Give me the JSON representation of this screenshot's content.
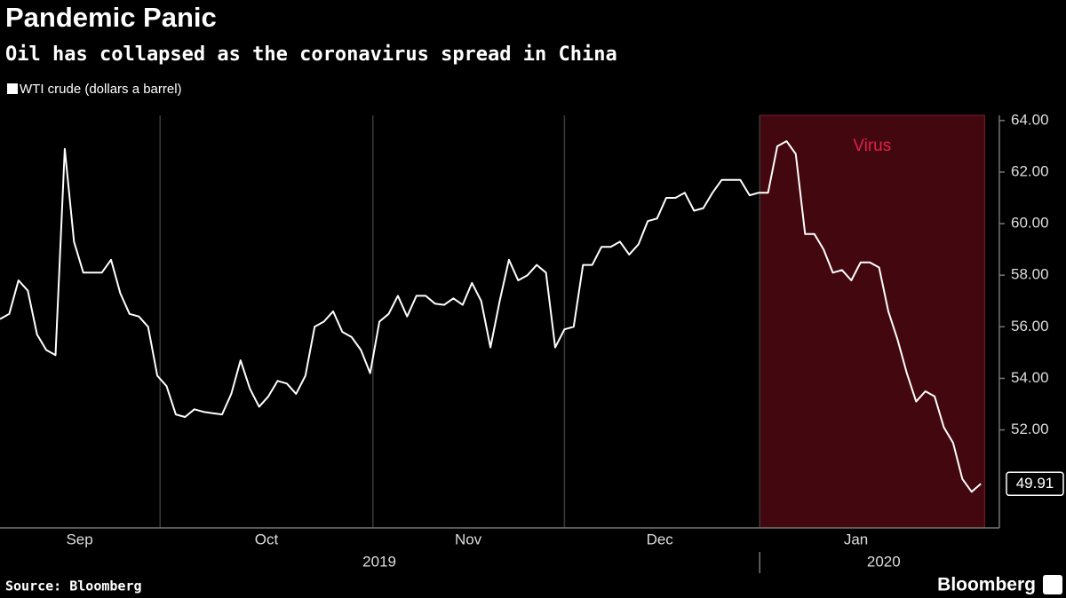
{
  "chart_data": {
    "type": "line",
    "title": "Pandemic Panic",
    "subtitle": "Oil has collapsed as the coronavirus spread in China",
    "source": "Source: Bloomberg",
    "brand": "Bloomberg",
    "series": [
      {
        "name": "WTI crude (dollars a barrel)",
        "color": "#ffffff",
        "values": [
          56.3,
          56.5,
          57.8,
          57.4,
          55.7,
          55.1,
          54.9,
          62.9,
          59.3,
          58.1,
          58.1,
          58.1,
          58.6,
          57.3,
          56.5,
          56.4,
          56.0,
          54.1,
          53.7,
          52.6,
          52.5,
          52.8,
          52.7,
          52.65,
          52.6,
          53.4,
          54.7,
          53.6,
          52.9,
          53.3,
          53.9,
          53.8,
          53.4,
          54.1,
          56.0,
          56.2,
          56.6,
          55.8,
          55.6,
          55.1,
          54.2,
          56.2,
          56.5,
          57.2,
          56.4,
          57.2,
          57.2,
          56.9,
          56.85,
          57.1,
          56.85,
          57.7,
          57.0,
          55.2,
          57.0,
          58.6,
          57.8,
          58.0,
          58.4,
          58.1,
          55.2,
          55.9,
          56.0,
          58.4,
          58.4,
          59.1,
          59.1,
          59.3,
          58.8,
          59.2,
          60.1,
          60.2,
          61.0,
          61.0,
          61.2,
          60.5,
          60.6,
          61.2,
          61.7,
          61.7,
          61.7,
          61.1,
          61.2,
          61.2,
          63.0,
          63.2,
          62.7,
          59.6,
          59.6,
          59.0,
          58.1,
          58.2,
          57.8,
          58.5,
          58.5,
          58.3,
          56.6,
          55.5,
          54.2,
          53.1,
          53.5,
          53.3,
          52.1,
          51.5,
          50.1,
          49.6,
          49.91
        ],
        "end_label": "49.91"
      }
    ],
    "xlim": [
      0,
      108
    ],
    "xticks": [
      17.3,
      40.3,
      61,
      82.1
    ],
    "month_labels": [
      {
        "value": 8.6,
        "label": "Sep"
      },
      {
        "value": 28.8,
        "label": "Oct"
      },
      {
        "value": 50.6,
        "label": "Nov"
      },
      {
        "value": 71.3,
        "label": "Dec"
      },
      {
        "value": 92.5,
        "label": "Jan"
      }
    ],
    "year_labels": [
      {
        "value": 41,
        "label": "2019"
      },
      {
        "value": 95.5,
        "label": "2020"
      }
    ],
    "year_divider": 82.1,
    "shade": {
      "label": "Virus",
      "start": 82.1,
      "end": 106.4,
      "color": "#5a0a14"
    },
    "ylim": [
      48.2,
      64.2
    ],
    "yticks": [
      {
        "value": 64,
        "label": "64.00"
      },
      {
        "value": 62,
        "label": "62.00"
      },
      {
        "value": 60,
        "label": "60.00"
      },
      {
        "value": 58,
        "label": "58.00"
      },
      {
        "value": 56,
        "label": "56.00"
      },
      {
        "value": 54,
        "label": "54.00"
      },
      {
        "value": 52,
        "label": "52.00"
      }
    ],
    "grid": true
  }
}
